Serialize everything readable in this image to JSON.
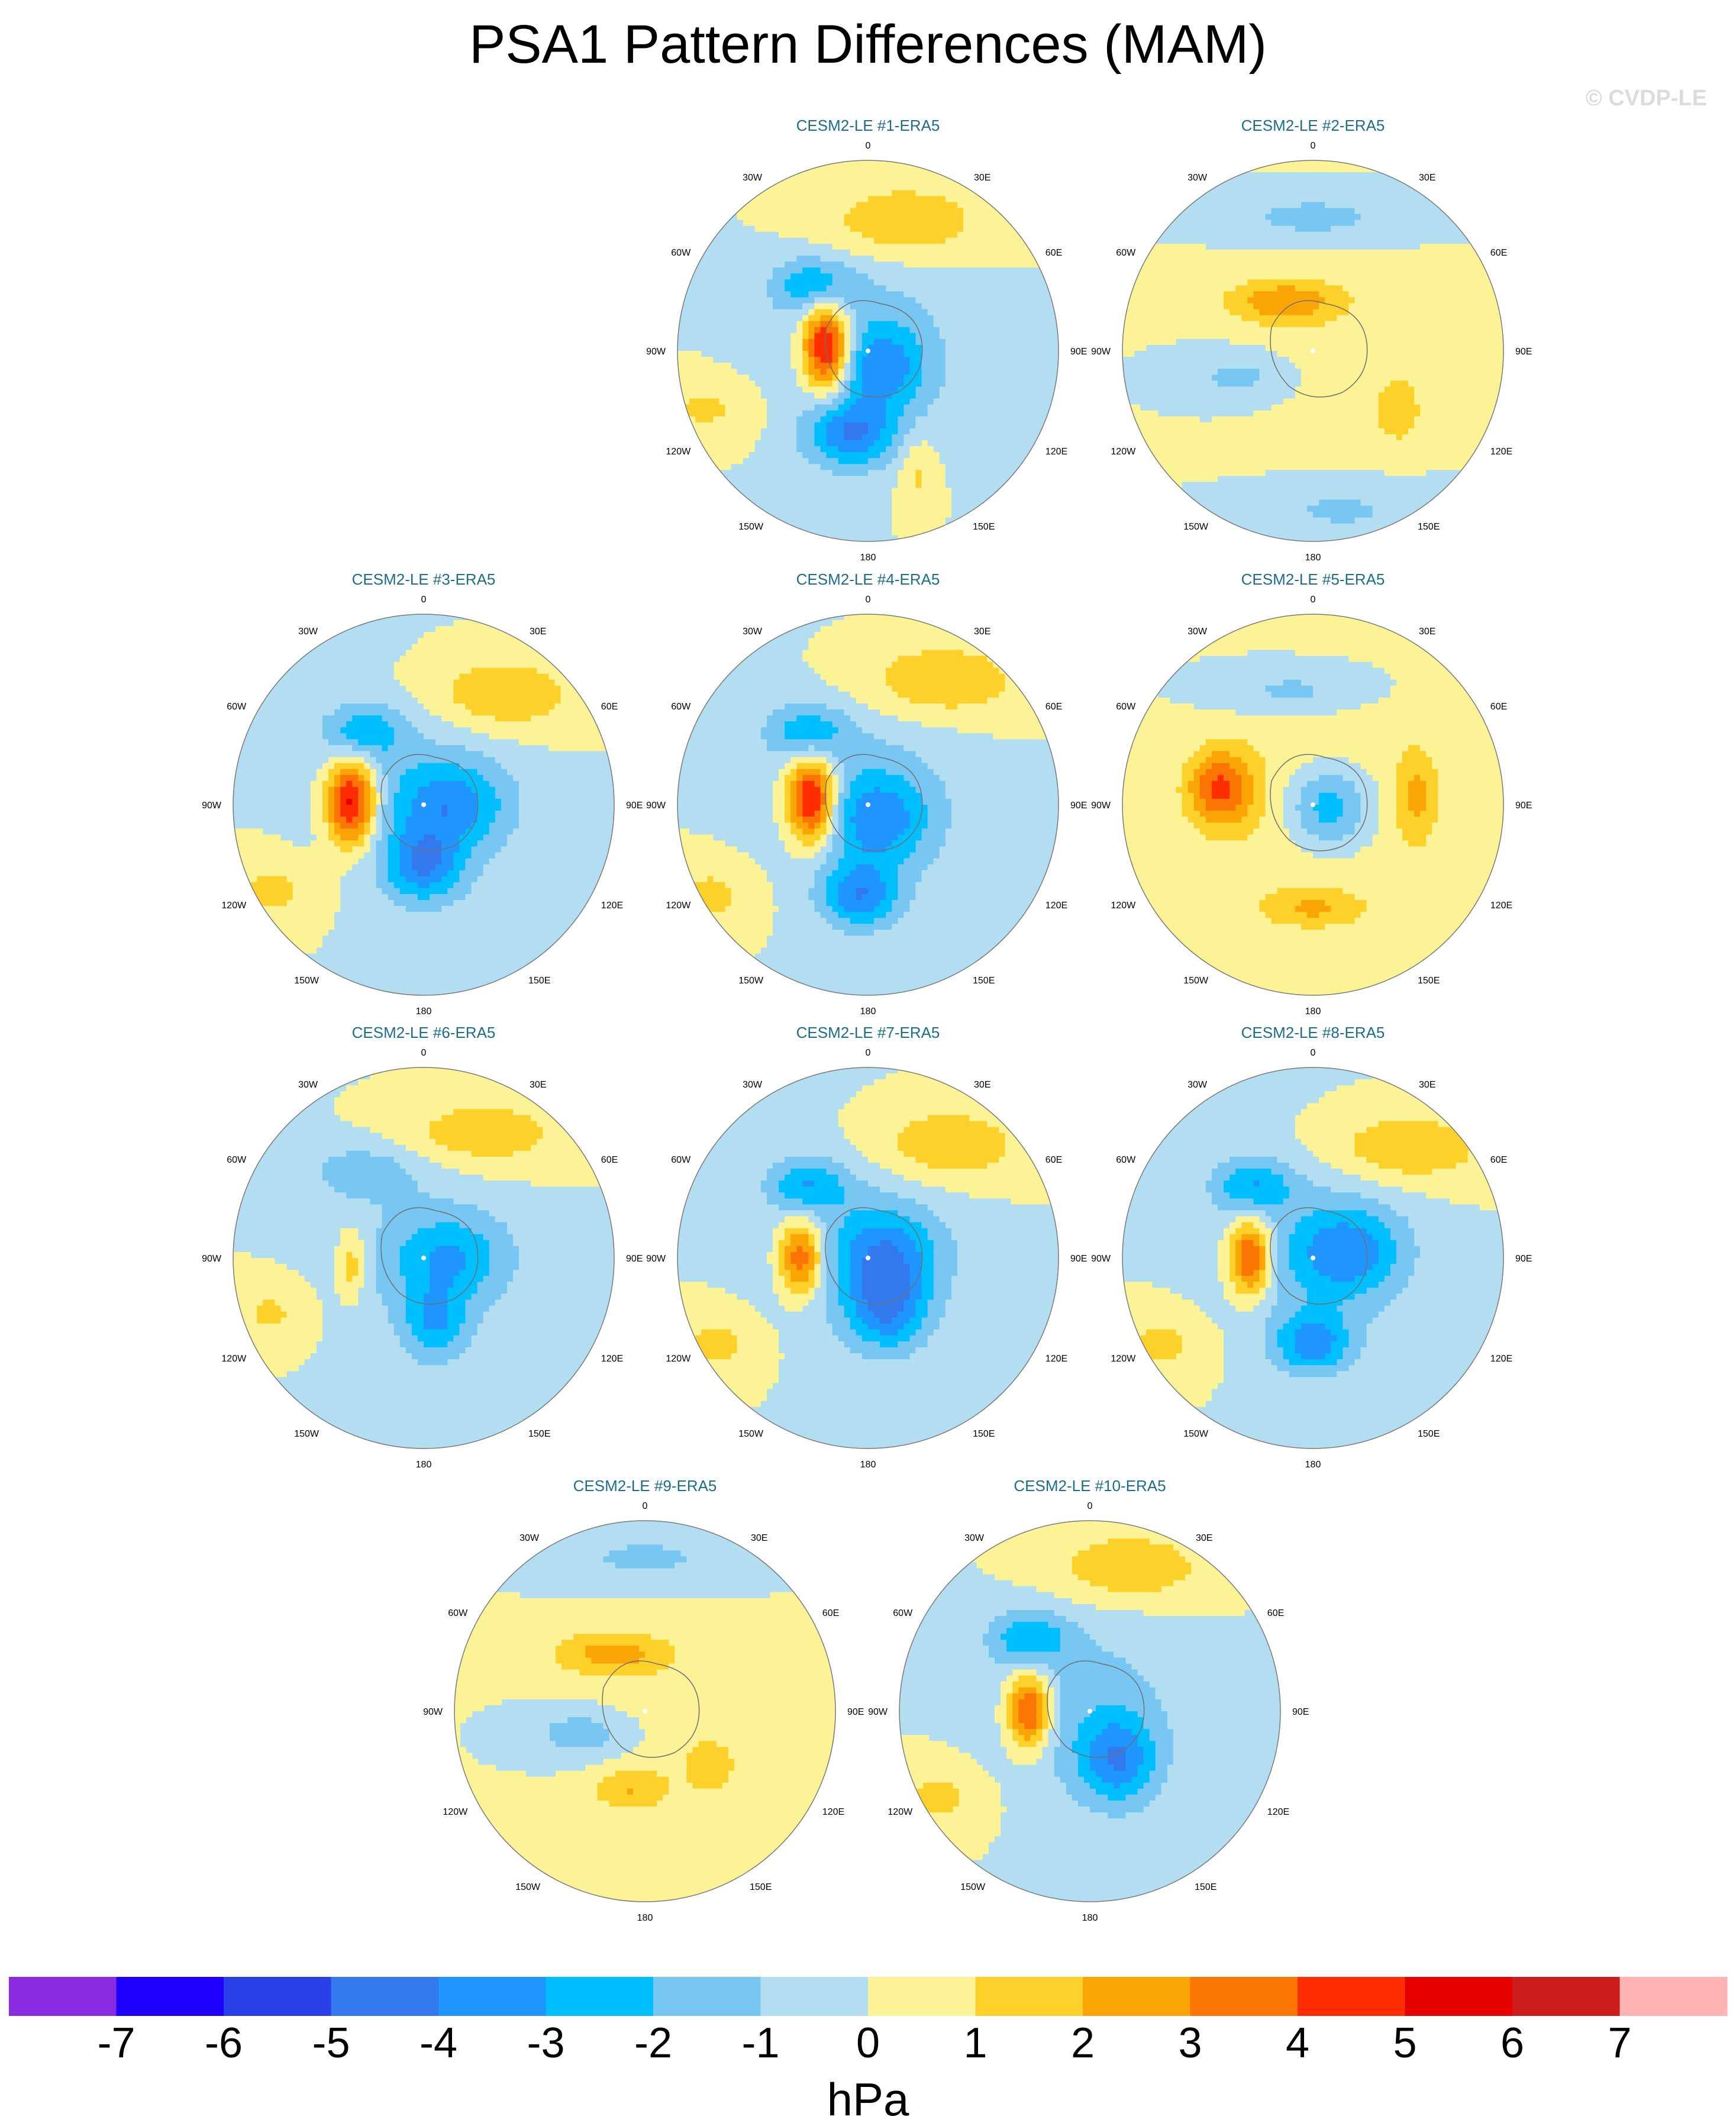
{
  "chart_data": {
    "type": "map",
    "title": "PSA1 Pattern Differences (MAM)",
    "watermark": "© CVDP-LE",
    "projection": "south polar stereographic",
    "longitude_labels": [
      "0",
      "30E",
      "60E",
      "90E",
      "120E",
      "150E",
      "180",
      "150W",
      "120W",
      "90W",
      "60W",
      "30W"
    ],
    "colorbar": {
      "units": "hPa",
      "ticks": [
        -7,
        -6,
        -5,
        -4,
        -3,
        -2,
        -1,
        0,
        1,
        2,
        3,
        4,
        5,
        6,
        7
      ],
      "tick_labels": [
        "-7",
        "-6",
        "-5",
        "-4",
        "-3",
        "-2",
        "-1",
        "0",
        "1",
        "2",
        "3",
        "4",
        "5",
        "6",
        "7"
      ],
      "colors": [
        "#8a2be2",
        "#1e00ff",
        "#2a3ee8",
        "#3478ee",
        "#1f96ff",
        "#00bfff",
        "#78c6f2",
        "#b3ddf1",
        "#fcf396",
        "#fdd12a",
        "#faa406",
        "#fb7504",
        "#ff2d00",
        "#e80000",
        "#cc1c1c",
        "#ffb3b3"
      ]
    },
    "panels": [
      {
        "title": "CESM2-LE #1-ERA5",
        "center": [
          -1.5,
          0
        ],
        "blobs": [
          {
            "lon": -95,
            "r": 0.22,
            "v": 6.5,
            "sx": 0.09,
            "sy": 0.16
          },
          {
            "lon": -12,
            "r": 0.45,
            "v": -3.5,
            "sx": 0.16,
            "sy": 0.12
          },
          {
            "lon": 40,
            "r": 0.12,
            "v": -2.5,
            "sx": 0.16,
            "sy": 0.16
          },
          {
            "lon": 165,
            "r": 0.7,
            "v": 2.0,
            "sx": 0.3,
            "sy": 0.14
          },
          {
            "lon": 22,
            "r": 0.7,
            "v": 1.3,
            "sx": 0.07,
            "sy": 0.15
          },
          {
            "lon": -140,
            "r": 0.45,
            "v": -2.5,
            "sx": 0.15,
            "sy": 0.1
          },
          {
            "lon": -70,
            "r": 0.9,
            "v": 1.2,
            "sx": 0.2,
            "sy": 0.12
          }
        ]
      },
      {
        "title": "CESM2-LE #2-ERA5",
        "center": [
          0.5,
          0
        ],
        "blobs": [
          {
            "lon": -150,
            "r": 0.3,
            "v": 2.5,
            "sx": 0.22,
            "sy": 0.08
          },
          {
            "lon": 55,
            "r": 0.55,
            "v": 1.5,
            "sx": 0.1,
            "sy": 0.14
          },
          {
            "lon": -70,
            "r": 0.4,
            "v": -1.5,
            "sx": 0.2,
            "sy": 0.1
          },
          {
            "lon": 180,
            "r": 0.7,
            "v": -1.5,
            "sx": 0.3,
            "sy": 0.08
          },
          {
            "lon": 10,
            "r": 0.85,
            "v": -1.2,
            "sx": 0.3,
            "sy": 0.1
          }
        ]
      },
      {
        "title": "CESM2-LE #3-ERA5",
        "center": [
          -1.5,
          0
        ],
        "blobs": [
          {
            "lon": -92,
            "r": 0.38,
            "v": 6.0,
            "sx": 0.09,
            "sy": 0.16
          },
          {
            "lon": 0,
            "r": 0.32,
            "v": -3.2,
            "sx": 0.14,
            "sy": 0.13
          },
          {
            "lon": 90,
            "r": 0.15,
            "v": -2.5,
            "sx": 0.2,
            "sy": 0.15
          },
          {
            "lon": 145,
            "r": 0.7,
            "v": 2.0,
            "sx": 0.28,
            "sy": 0.14
          },
          {
            "lon": -140,
            "r": 0.5,
            "v": -2.5,
            "sx": 0.15,
            "sy": 0.1
          },
          {
            "lon": -60,
            "r": 0.9,
            "v": 1.3,
            "sx": 0.18,
            "sy": 0.13
          }
        ]
      },
      {
        "title": "CESM2-LE #4-ERA5",
        "center": [
          -1.5,
          0
        ],
        "blobs": [
          {
            "lon": -95,
            "r": 0.3,
            "v": 6.2,
            "sx": 0.09,
            "sy": 0.16
          },
          {
            "lon": -5,
            "r": 0.48,
            "v": -3.4,
            "sx": 0.14,
            "sy": 0.12
          },
          {
            "lon": 40,
            "r": 0.1,
            "v": -2.5,
            "sx": 0.18,
            "sy": 0.16
          },
          {
            "lon": 150,
            "r": 0.75,
            "v": 2.0,
            "sx": 0.3,
            "sy": 0.14
          },
          {
            "lon": -140,
            "r": 0.5,
            "v": -2.5,
            "sx": 0.15,
            "sy": 0.1
          },
          {
            "lon": -60,
            "r": 0.95,
            "v": 1.3,
            "sx": 0.18,
            "sy": 0.13
          }
        ]
      },
      {
        "title": "CESM2-LE #5-ERA5",
        "center": [
          1.5,
          0
        ],
        "blobs": [
          {
            "lon": -100,
            "r": 0.5,
            "v": 3.8,
            "sx": 0.12,
            "sy": 0.14
          },
          {
            "lon": 95,
            "r": 0.55,
            "v": 2.0,
            "sx": 0.08,
            "sy": 0.18
          },
          {
            "lon": 0,
            "r": 0.55,
            "v": 1.8,
            "sx": 0.2,
            "sy": 0.07
          },
          {
            "lon": 80,
            "r": 0.08,
            "v": -3.8,
            "sx": 0.17,
            "sy": 0.17
          },
          {
            "lon": -170,
            "r": 0.6,
            "v": -1.5,
            "sx": 0.25,
            "sy": 0.09
          }
        ]
      },
      {
        "title": "CESM2-LE #6-ERA5",
        "center": [
          -1.0,
          0
        ],
        "blobs": [
          {
            "lon": -85,
            "r": 0.38,
            "v": 2.0,
            "sx": 0.05,
            "sy": 0.13
          },
          {
            "lon": 10,
            "r": 0.35,
            "v": -2.5,
            "sx": 0.12,
            "sy": 0.14
          },
          {
            "lon": 90,
            "r": 0.15,
            "v": -2.2,
            "sx": 0.22,
            "sy": 0.16
          },
          {
            "lon": 155,
            "r": 0.72,
            "v": 1.8,
            "sx": 0.3,
            "sy": 0.13
          },
          {
            "lon": -145,
            "r": 0.55,
            "v": -1.6,
            "sx": 0.2,
            "sy": 0.1
          },
          {
            "lon": -70,
            "r": 0.85,
            "v": 1.2,
            "sx": 0.15,
            "sy": 0.12
          }
        ]
      },
      {
        "title": "CESM2-LE #7-ERA5",
        "center": [
          -1.5,
          0
        ],
        "blobs": [
          {
            "lon": -90,
            "r": 0.35,
            "v": 4.5,
            "sx": 0.08,
            "sy": 0.14
          },
          {
            "lon": 20,
            "r": 0.3,
            "v": -3.0,
            "sx": 0.14,
            "sy": 0.14
          },
          {
            "lon": 95,
            "r": 0.1,
            "v": -2.8,
            "sx": 0.18,
            "sy": 0.16
          },
          {
            "lon": 145,
            "r": 0.72,
            "v": 2.0,
            "sx": 0.28,
            "sy": 0.14
          },
          {
            "lon": -140,
            "r": 0.5,
            "v": -2.6,
            "sx": 0.15,
            "sy": 0.1
          },
          {
            "lon": -60,
            "r": 0.9,
            "v": 1.3,
            "sx": 0.18,
            "sy": 0.13
          }
        ]
      },
      {
        "title": "CESM2-LE #8-ERA5",
        "center": [
          -1.5,
          0
        ],
        "blobs": [
          {
            "lon": -90,
            "r": 0.33,
            "v": 5.0,
            "sx": 0.08,
            "sy": 0.14
          },
          {
            "lon": 0,
            "r": 0.45,
            "v": -3.2,
            "sx": 0.14,
            "sy": 0.11
          },
          {
            "lon": 100,
            "r": 0.2,
            "v": -2.7,
            "sx": 0.2,
            "sy": 0.16
          },
          {
            "lon": 140,
            "r": 0.75,
            "v": 2.0,
            "sx": 0.3,
            "sy": 0.13
          },
          {
            "lon": -140,
            "r": 0.5,
            "v": -2.6,
            "sx": 0.15,
            "sy": 0.1
          },
          {
            "lon": -60,
            "r": 0.9,
            "v": 1.3,
            "sx": 0.18,
            "sy": 0.13
          }
        ]
      },
      {
        "title": "CESM2-LE #9-ERA5",
        "center": [
          0.5,
          0
        ],
        "blobs": [
          {
            "lon": -150,
            "r": 0.35,
            "v": 2.2,
            "sx": 0.22,
            "sy": 0.08
          },
          {
            "lon": -10,
            "r": 0.42,
            "v": 1.8,
            "sx": 0.15,
            "sy": 0.08
          },
          {
            "lon": 50,
            "r": 0.45,
            "v": 1.6,
            "sx": 0.1,
            "sy": 0.1
          },
          {
            "lon": -70,
            "r": 0.35,
            "v": -1.8,
            "sx": 0.2,
            "sy": 0.1
          },
          {
            "lon": 180,
            "r": 0.8,
            "v": -1.3,
            "sx": 0.3,
            "sy": 0.1
          }
        ]
      },
      {
        "title": "CESM2-LE #10-ERA5",
        "center": [
          -1.5,
          0
        ],
        "blobs": [
          {
            "lon": -90,
            "r": 0.32,
            "v": 5.0,
            "sx": 0.08,
            "sy": 0.14
          },
          {
            "lon": 30,
            "r": 0.3,
            "v": -3.2,
            "sx": 0.14,
            "sy": 0.16
          },
          {
            "lon": 165,
            "r": 0.78,
            "v": 2.0,
            "sx": 0.28,
            "sy": 0.13
          },
          {
            "lon": -140,
            "r": 0.5,
            "v": -2.5,
            "sx": 0.15,
            "sy": 0.1
          },
          {
            "lon": -60,
            "r": 0.9,
            "v": 1.3,
            "sx": 0.18,
            "sy": 0.13
          }
        ]
      }
    ]
  }
}
